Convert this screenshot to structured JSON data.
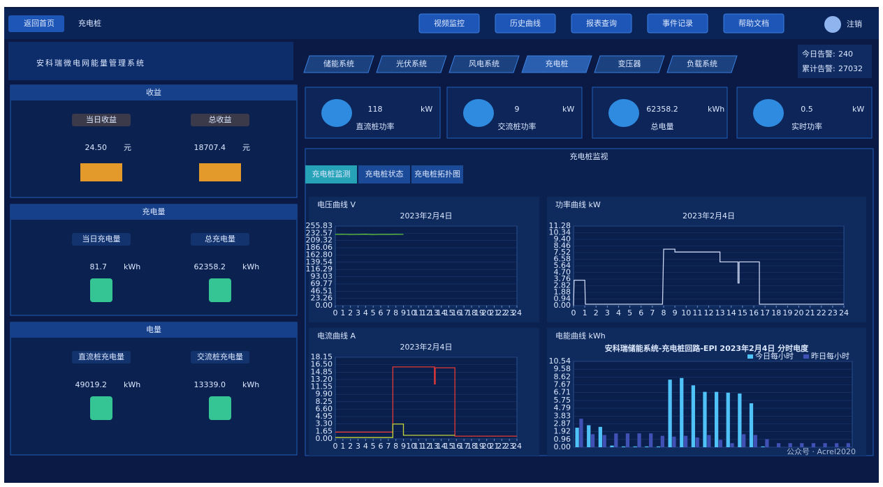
{
  "header": {
    "back": "返回首页",
    "title": "充电桩",
    "nav": [
      "视频监控",
      "历史曲线",
      "报表查询",
      "事件记录",
      "帮助文档"
    ],
    "logout": "注销"
  },
  "system_title": "安科瑞微电网能量管理系统",
  "tabs": [
    "储能系统",
    "光伏系统",
    "风电系统",
    "充电桩",
    "变压器",
    "负载系统"
  ],
  "alarms": [
    {
      "label": "今日告警:",
      "value": 240
    },
    {
      "label": "累计告警:",
      "value": 27032
    }
  ],
  "left_panels": [
    {
      "title": "收益",
      "items": [
        {
          "label": "当日收益",
          "value": "24.50",
          "unit": "元"
        },
        {
          "label": "总收益",
          "value": 18707.4,
          "unit": "元"
        }
      ]
    },
    {
      "title": "充电量",
      "items": [
        {
          "label": "当日充电量",
          "value": 81.7,
          "unit": "kWh"
        },
        {
          "label": "总充电量",
          "value": 62358.2,
          "unit": "kWh"
        }
      ]
    },
    {
      "title": "电量",
      "items": [
        {
          "label": "直流桩充电量",
          "value": 49019.2,
          "unit": "kWh"
        },
        {
          "label": "交流桩充电量",
          "value": "13339.0",
          "unit": "kWh"
        }
      ]
    }
  ],
  "stats": [
    {
      "value": 118,
      "unit": "kW",
      "label": "直流桩功率"
    },
    {
      "value": 9,
      "unit": "kW",
      "label": "交流桩功率"
    },
    {
      "value": 62358.2,
      "unit": "kWh",
      "label": "总电量"
    },
    {
      "value": 0.5,
      "unit": "kW",
      "label": "实时功率"
    }
  ],
  "monitor": {
    "title": "充电桩监视",
    "subtabs": [
      "充电桩监测",
      "充电桩状态",
      "充电桩拓扑图"
    ]
  },
  "charts": [
    {
      "type": "line",
      "label": "电压曲线 V",
      "subtitle": "2023年2月4日",
      "xlim": [
        0,
        24
      ],
      "xticks": [
        0,
        1,
        2,
        3,
        4,
        5,
        6,
        7,
        8,
        9,
        10,
        11,
        12,
        13,
        14,
        15,
        16,
        17,
        18,
        19,
        20,
        21,
        22,
        23,
        24
      ],
      "ylim": [
        0,
        255.83
      ],
      "yticks": [
        {
          "value": 0,
          "label": "0.00"
        },
        23.26,
        46.51,
        69.77,
        93.03,
        116.29,
        139.54,
        {
          "value": 162.8,
          "label": "162.80"
        },
        186.06,
        209.32,
        232.57,
        255.83
      ],
      "series": [
        {
          "color": "#5fbf3a",
          "x": [
            0,
            1,
            2,
            3,
            4,
            5,
            6,
            7,
            8,
            9
          ],
          "values": [
            229.1,
            229.4,
            228.8,
            229.0,
            229.6,
            228.5,
            229.2,
            229.0,
            229.3,
            229.1
          ]
        }
      ]
    },
    {
      "type": "line",
      "label": "功率曲线 kW",
      "subtitle": "2023年2月4日",
      "xlim": [
        0,
        24
      ],
      "xticks": [
        0,
        1,
        2,
        3,
        4,
        5,
        6,
        7,
        8,
        9,
        10,
        11,
        12,
        13,
        14,
        15,
        16,
        17,
        18,
        19,
        20,
        21,
        22,
        23,
        24
      ],
      "ylim": [
        0,
        11.28
      ],
      "yticks": [
        {
          "value": 0,
          "label": "0.00"
        },
        0.94,
        1.88,
        2.82,
        3.76,
        {
          "value": 4.7,
          "label": "4.70"
        },
        5.64,
        6.58,
        7.52,
        8.46,
        {
          "value": 9.4,
          "label": "9.40"
        },
        10.34,
        11.28
      ],
      "series": [
        {
          "color": "#c8d4f0",
          "x": [
            0,
            0.05,
            1,
            1.05,
            7.9,
            8,
            9,
            9,
            13,
            13,
            14.6,
            14.6,
            14.7,
            14.7,
            16.5,
            16.5,
            24
          ],
          "values": [
            0,
            3.6,
            3.6,
            0.2,
            0.2,
            8.0,
            8.0,
            7.6,
            7.6,
            6.2,
            6.2,
            3.2,
            3.2,
            6.2,
            6.2,
            0.2,
            0.2
          ]
        }
      ]
    },
    {
      "type": "line",
      "label": "电流曲线 A",
      "subtitle": "2023年2月4日",
      "xlim": [
        0,
        24
      ],
      "xticks": [
        0,
        1,
        2,
        3,
        4,
        5,
        6,
        7,
        8,
        9,
        10,
        11,
        12,
        13,
        14,
        15,
        16,
        17,
        18,
        19,
        20,
        21,
        22,
        23,
        24
      ],
      "ylim": [
        0,
        18.15
      ],
      "yticks": [
        {
          "value": 0,
          "label": "0.00"
        },
        1.65,
        {
          "value": 3.3,
          "label": "3.30"
        },
        {
          "value": 4.95,
          "label": "4.95"
        },
        {
          "value": 6.6,
          "label": "6.60"
        },
        {
          "value": 8.25,
          "label": "8.25"
        },
        {
          "value": 9.9,
          "label": "9.90"
        },
        11.55,
        {
          "value": 13.2,
          "label": "13.20"
        },
        14.85,
        {
          "value": 16.5,
          "label": "16.50"
        },
        18.15
      ],
      "series": [
        {
          "color": "#e53935",
          "x": [
            0,
            7.6,
            7.6,
            13.1,
            13.1,
            13.2,
            13.2,
            15.8,
            15.8,
            24
          ],
          "values": [
            1.5,
            1.5,
            16.0,
            16.0,
            12.2,
            12.2,
            15.8,
            15.8,
            0.6,
            0.6
          ]
        },
        {
          "color": "#c6d63a",
          "x": [
            0,
            7.6,
            7.6,
            9.0,
            9.0,
            15.8
          ],
          "values": [
            0.3,
            0.3,
            3.3,
            3.3,
            0.8,
            0.8
          ]
        }
      ]
    },
    {
      "type": "bar",
      "label": "电能曲线 kWh",
      "title": "安科瑞储能系统-充电桩回路-EPI 2023年2月4日 分时电度",
      "categories": [
        null,
        null,
        null,
        null,
        null,
        null,
        null,
        null,
        null,
        null,
        null,
        null,
        null,
        null,
        null,
        null,
        null,
        null,
        null,
        null,
        null,
        null,
        null,
        null
      ],
      "ylim": [
        0,
        10.54
      ],
      "yticks": [
        {
          "value": 0,
          "label": "0.00"
        },
        0.96,
        1.92,
        2.87,
        3.83,
        4.79,
        5.75,
        6.71,
        7.67,
        8.62,
        9.58,
        10.54
      ],
      "series": [
        {
          "name": "今日每小时",
          "color": "#4fc3f7",
          "values": [
            2.4,
            2.7,
            2.5,
            0.2,
            0.1,
            0.1,
            0.1,
            0.1,
            8.3,
            8.5,
            7.6,
            6.8,
            6.8,
            6.7,
            6.6,
            5.4,
            0.1,
            0,
            0,
            0,
            0,
            0,
            0,
            0
          ]
        },
        {
          "name": "昨日每小时",
          "color": "#3f51b5",
          "values": [
            3.5,
            1.6,
            1.5,
            1.7,
            1.7,
            1.7,
            1.7,
            1.4,
            1.3,
            1.4,
            1.2,
            1.5,
            0.9,
            0.5,
            1.6,
            1.5,
            1.0,
            0.5,
            0.5,
            0.5,
            0.5,
            0.5,
            0.5,
            0.5
          ]
        }
      ]
    }
  ],
  "watermark": "公众号 · Acrel2020"
}
